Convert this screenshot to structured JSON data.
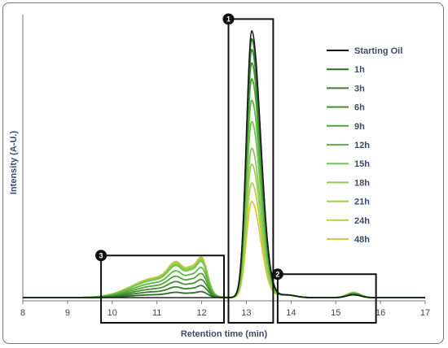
{
  "chart_data": {
    "type": "line",
    "xlabel": "Retention time (min)",
    "ylabel": "Intensity (A-U.)",
    "xlim": [
      8,
      17
    ],
    "x_ticks": [
      "8",
      "9",
      "10",
      "11",
      "12",
      "13",
      "14",
      "15",
      "16",
      "17"
    ],
    "legend_position": "right",
    "series": [
      {
        "name": "Starting Oil",
        "color": "#111111",
        "main_peak": 1.0,
        "early_peak": 0.0,
        "late_peak": 0.01
      },
      {
        "name": "1h",
        "color": "#2e6b2a",
        "main_peak": 0.97,
        "early_peak": 0.02,
        "late_peak": 0.012
      },
      {
        "name": "3h",
        "color": "#3b7f2e",
        "main_peak": 0.93,
        "early_peak": 0.04,
        "late_peak": 0.013
      },
      {
        "name": "6h",
        "color": "#468f33",
        "main_peak": 0.88,
        "early_peak": 0.06,
        "late_peak": 0.014
      },
      {
        "name": "9h",
        "color": "#52a33a",
        "main_peak": 0.82,
        "early_peak": 0.08,
        "late_peak": 0.015
      },
      {
        "name": "12h",
        "color": "#5fb845",
        "main_peak": 0.74,
        "early_peak": 0.1,
        "late_peak": 0.016
      },
      {
        "name": "15h",
        "color": "#75c451",
        "main_peak": 0.66,
        "early_peak": 0.12,
        "late_peak": 0.017
      },
      {
        "name": "18h",
        "color": "#8bca55",
        "main_peak": 0.56,
        "early_peak": 0.125,
        "late_peak": 0.018
      },
      {
        "name": "21h",
        "color": "#a2cc4f",
        "main_peak": 0.5,
        "early_peak": 0.128,
        "late_peak": 0.018
      },
      {
        "name": "24h",
        "color": "#b8cf45",
        "main_peak": 0.43,
        "early_peak": 0.132,
        "late_peak": 0.019
      },
      {
        "name": "48h",
        "color": "#d4cb3c",
        "main_peak": 0.36,
        "early_peak": 0.135,
        "late_peak": 0.02
      }
    ],
    "regions": [
      {
        "label": "1",
        "x_start": 12.6,
        "x_end": 13.6,
        "y_top": 1.02
      },
      {
        "label": "2",
        "x_start": 13.7,
        "x_end": 15.9,
        "y_top": 0.1
      },
      {
        "label": "3",
        "x_start": 9.75,
        "x_end": 12.5,
        "y_top": 0.17
      }
    ]
  }
}
